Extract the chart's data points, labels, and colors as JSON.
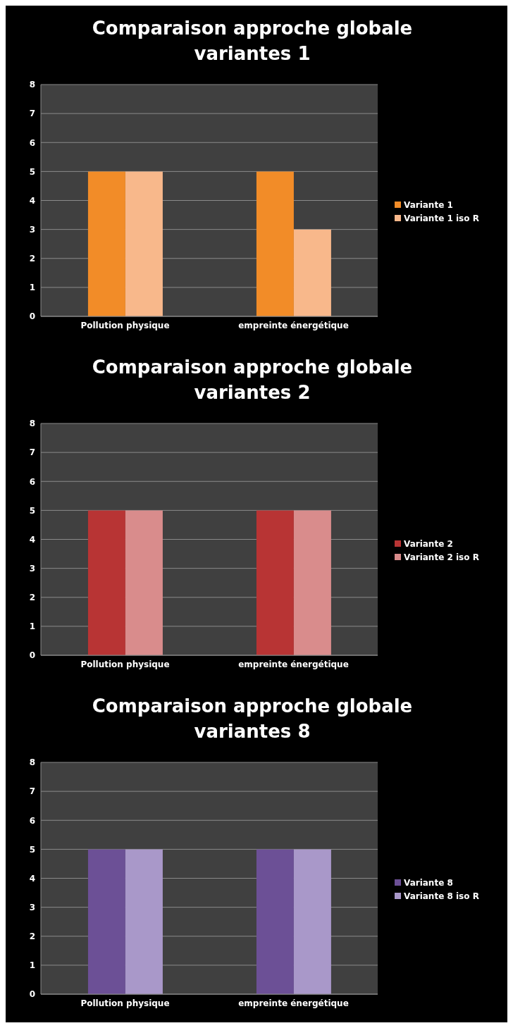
{
  "chart_data": [
    {
      "type": "bar",
      "title": "Comparaison approche globale variantes 1",
      "categories": [
        "Pollution physique",
        "empreinte énergétique"
      ],
      "series": [
        {
          "name": "Variante 1",
          "color": "#f28c28",
          "values": [
            5,
            5
          ]
        },
        {
          "name": "Variante 1 iso R",
          "color": "#f8b88b",
          "values": [
            5,
            3
          ]
        }
      ],
      "ylim": [
        0,
        8
      ],
      "yticks": [
        0,
        1,
        2,
        3,
        4,
        5,
        6,
        7,
        8
      ],
      "grid": "y",
      "legend": "right"
    },
    {
      "type": "bar",
      "title": "Comparaison approche globale variantes 2",
      "categories": [
        "Pollution physique",
        "empreinte énergétique"
      ],
      "series": [
        {
          "name": "Variante 2",
          "color": "#b83434",
          "values": [
            5,
            5
          ]
        },
        {
          "name": "Variante 2 iso R",
          "color": "#d98c8c",
          "values": [
            5,
            5
          ]
        }
      ],
      "ylim": [
        0,
        8
      ],
      "yticks": [
        0,
        1,
        2,
        3,
        4,
        5,
        6,
        7,
        8
      ],
      "grid": "y",
      "legend": "right"
    },
    {
      "type": "bar",
      "title": "Comparaison approche globale variantes 8",
      "categories": [
        "Pollution physique",
        "empreinte énergétique"
      ],
      "series": [
        {
          "name": "Variante 8",
          "color": "#6c5096",
          "values": [
            5,
            5
          ]
        },
        {
          "name": "Variante 8 iso R",
          "color": "#a998c9",
          "values": [
            5,
            5
          ]
        }
      ],
      "ylim": [
        0,
        8
      ],
      "yticks": [
        0,
        1,
        2,
        3,
        4,
        5,
        6,
        7,
        8
      ],
      "grid": "y",
      "legend": "right"
    }
  ]
}
